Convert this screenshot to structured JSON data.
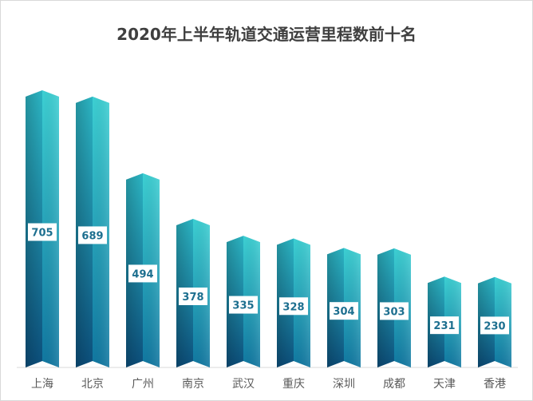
{
  "chart_data": {
    "type": "bar",
    "title": "2020年上半年轨道交通运营里程数前十名",
    "categories": [
      "上海",
      "北京",
      "广州",
      "南京",
      "武汉",
      "重庆",
      "深圳",
      "成都",
      "天津",
      "香港"
    ],
    "values": [
      705,
      689,
      494,
      378,
      335,
      328,
      304,
      303,
      231,
      230
    ],
    "xlabel": "",
    "ylabel": "",
    "ylim": [
      0,
      750
    ],
    "grid": false,
    "legend": "none",
    "colors": {
      "bar_dark": "#0d5a86",
      "bar_light": "#31c4cc",
      "label_text": "#1d6f8f",
      "title": "#3f3f3f",
      "axis": "#d9d9d9"
    }
  }
}
